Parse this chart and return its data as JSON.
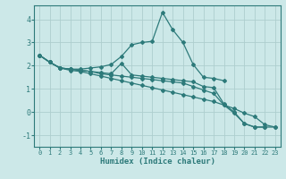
{
  "xlabel": "Humidex (Indice chaleur)",
  "background_color": "#cce8e8",
  "line_color": "#2d7a7a",
  "grid_color": "#aecece",
  "xlim": [
    -0.5,
    23.5
  ],
  "ylim": [
    -1.5,
    4.6
  ],
  "yticks": [
    -1,
    0,
    1,
    2,
    3,
    4
  ],
  "xticks": [
    0,
    1,
    2,
    3,
    4,
    5,
    6,
    7,
    8,
    9,
    10,
    11,
    12,
    13,
    14,
    15,
    16,
    17,
    18,
    19,
    20,
    21,
    22,
    23
  ],
  "lines": [
    {
      "x": [
        0,
        1,
        2,
        3,
        4,
        5,
        6,
        7,
        8,
        9,
        10,
        11,
        12,
        13,
        14,
        15,
        16,
        17,
        18
      ],
      "y": [
        2.45,
        2.15,
        1.9,
        1.85,
        1.85,
        1.9,
        1.95,
        2.05,
        2.4,
        2.9,
        3.0,
        3.05,
        4.3,
        3.55,
        3.0,
        2.05,
        1.5,
        1.45,
        1.35
      ]
    },
    {
      "x": [
        0,
        1,
        2,
        3,
        4,
        5,
        6,
        7,
        8,
        9,
        10,
        11,
        12,
        13,
        14,
        15,
        16,
        17,
        18,
        19,
        20,
        21,
        22,
        23
      ],
      "y": [
        2.45,
        2.15,
        1.9,
        1.8,
        1.75,
        1.65,
        1.55,
        1.45,
        1.35,
        1.25,
        1.15,
        1.05,
        0.95,
        0.85,
        0.75,
        0.65,
        0.55,
        0.45,
        0.3,
        0.15,
        -0.05,
        -0.2,
        -0.55,
        -0.65
      ]
    },
    {
      "x": [
        0,
        1,
        2,
        3,
        4,
        5,
        6,
        7,
        8,
        9,
        10,
        11,
        12,
        13,
        14,
        15,
        16,
        17,
        18,
        19,
        20,
        21,
        22
      ],
      "y": [
        2.45,
        2.15,
        1.9,
        1.85,
        1.8,
        1.75,
        1.7,
        1.65,
        2.1,
        1.6,
        1.55,
        1.5,
        1.45,
        1.4,
        1.35,
        1.3,
        1.1,
        1.05,
        0.35,
        0.0,
        -0.5,
        -0.65,
        -0.65
      ]
    },
    {
      "x": [
        0,
        1,
        2,
        3,
        4,
        5,
        6,
        7,
        8,
        9,
        10,
        11,
        12,
        13,
        14,
        15,
        16,
        17,
        18,
        19,
        20,
        21,
        22,
        23
      ],
      "y": [
        2.45,
        2.15,
        1.9,
        1.85,
        1.8,
        1.75,
        1.65,
        1.6,
        1.55,
        1.5,
        1.45,
        1.4,
        1.35,
        1.3,
        1.25,
        1.1,
        0.95,
        0.8,
        0.3,
        -0.05,
        -0.5,
        -0.65,
        -0.65,
        -0.65
      ]
    }
  ]
}
